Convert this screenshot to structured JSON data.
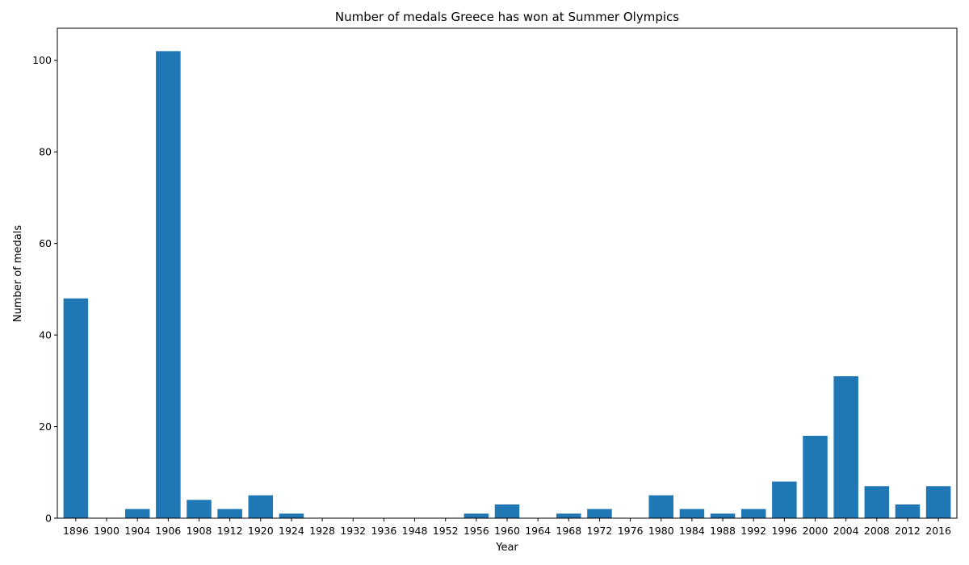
{
  "chart_data": {
    "type": "bar",
    "title": "Number of medals Greece has won at Summer Olympics",
    "xlabel": "Year",
    "ylabel": "Number of medals",
    "categories": [
      "1896",
      "1900",
      "1904",
      "1906",
      "1908",
      "1912",
      "1920",
      "1924",
      "1928",
      "1932",
      "1936",
      "1948",
      "1952",
      "1956",
      "1960",
      "1964",
      "1968",
      "1972",
      "1976",
      "1980",
      "1984",
      "1988",
      "1992",
      "1996",
      "2000",
      "2004",
      "2008",
      "2012",
      "2016"
    ],
    "values": [
      48,
      0,
      2,
      102,
      4,
      2,
      5,
      1,
      0,
      0,
      0,
      0,
      0,
      1,
      3,
      0,
      1,
      2,
      0,
      5,
      2,
      1,
      2,
      8,
      18,
      31,
      7,
      3,
      7
    ],
    "ylim": [
      0,
      107
    ],
    "yticks": [
      0,
      20,
      40,
      60,
      80,
      100
    ],
    "bar_color": "#1f77b4",
    "grid": false,
    "legend": "none"
  }
}
